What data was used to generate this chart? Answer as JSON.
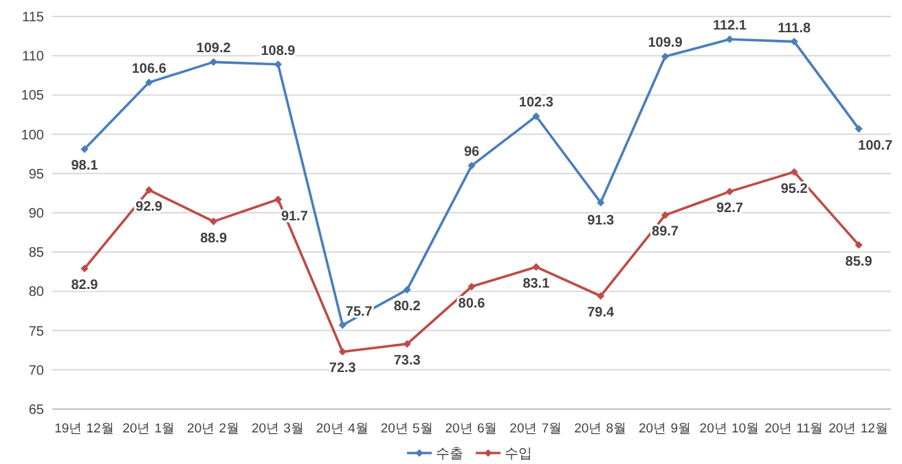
{
  "chart_data": {
    "type": "line",
    "categories": [
      "19년 12월",
      "20년 1월",
      "20년 2월",
      "20년 3월",
      "20년 4월",
      "20년 5월",
      "20년 6월",
      "20년 7월",
      "20년 8월",
      "20년 9월",
      "20년 10월",
      "20년 11월",
      "20년 12월"
    ],
    "series": [
      {
        "name": "수출",
        "color": "#4a7ebb",
        "values": [
          98.1,
          106.6,
          109.2,
          108.9,
          75.7,
          80.2,
          96,
          102.3,
          91.3,
          109.9,
          112.1,
          111.8,
          100.7
        ]
      },
      {
        "name": "수입",
        "color": "#be4b48",
        "values": [
          82.9,
          92.9,
          88.9,
          91.7,
          72.3,
          73.3,
          80.6,
          83.1,
          79.4,
          89.7,
          92.7,
          95.2,
          85.9
        ]
      }
    ],
    "ylim": [
      65,
      115
    ],
    "yticks": [
      65,
      70,
      75,
      80,
      85,
      90,
      95,
      100,
      105,
      110,
      115
    ],
    "grid": "y",
    "legend": "bottom",
    "marker": "diamond",
    "line_style": "solid",
    "data_labels": true
  }
}
